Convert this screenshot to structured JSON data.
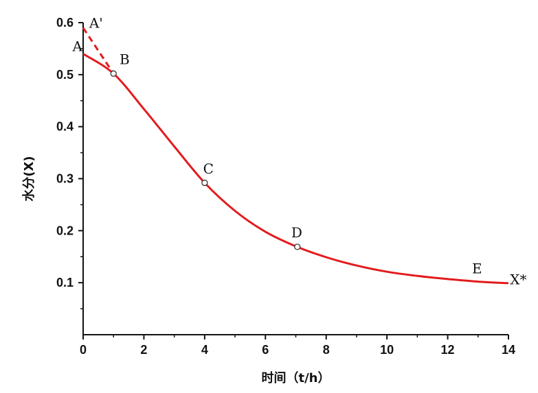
{
  "chart_data": {
    "type": "line",
    "title": "",
    "xlabel": "时间（t/h）",
    "ylabel": "水分(X)",
    "xlim": [
      0,
      14
    ],
    "ylim": [
      0,
      0.6
    ],
    "xticks": [
      0,
      2,
      4,
      6,
      8,
      10,
      12,
      14
    ],
    "yticks": [
      0.1,
      0.2,
      0.3,
      0.4,
      0.5,
      0.6
    ],
    "xtick_labels": [
      "0",
      "2",
      "4",
      "6",
      "8",
      "10",
      "12",
      "14"
    ],
    "ytick_labels": [
      "0.1",
      "0.2",
      "0.3",
      "0.4",
      "0.5",
      "0.6"
    ],
    "grid": false,
    "line_color": "#e31a1c",
    "series": [
      {
        "style": "solid",
        "x": [
          0,
          1,
          2,
          3,
          4,
          5,
          6,
          7,
          8,
          9,
          10,
          11,
          12,
          13,
          14
        ],
        "y": [
          0.54,
          0.502,
          0.434,
          0.362,
          0.292,
          0.238,
          0.198,
          0.17,
          0.149,
          0.133,
          0.121,
          0.113,
          0.107,
          0.102,
          0.099
        ]
      },
      {
        "style": "dashed",
        "x": [
          0,
          1
        ],
        "y": [
          0.59,
          0.502
        ]
      }
    ],
    "markers": [
      {
        "x": 1,
        "y": 0.502
      },
      {
        "x": 4,
        "y": 0.292
      },
      {
        "x": 7.05,
        "y": 0.169
      }
    ],
    "annotations": [
      {
        "text": "A'",
        "x": 0.2,
        "y": 0.59
      },
      {
        "text": "A",
        "x": -0.35,
        "y": 0.545
      },
      {
        "text": "B",
        "x": 1.2,
        "y": 0.52
      },
      {
        "text": "C",
        "x": 3.95,
        "y": 0.31
      },
      {
        "text": "D",
        "x": 6.85,
        "y": 0.187
      },
      {
        "text": "E",
        "x": 12.8,
        "y": 0.118
      },
      {
        "text": "X*",
        "x": 14.05,
        "y": 0.097
      }
    ]
  }
}
